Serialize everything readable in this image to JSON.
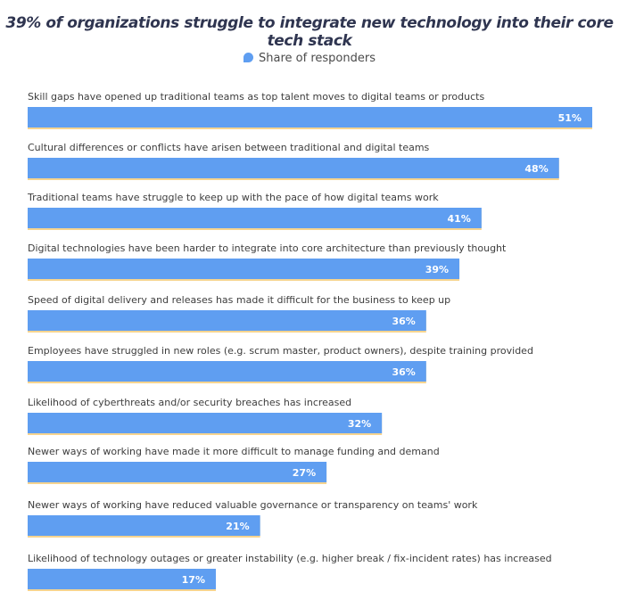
{
  "chart_data": {
    "type": "bar",
    "orientation": "horizontal",
    "title": "39% of organizations struggle to integrate new technology into their core tech stack",
    "legend": {
      "label": "Share of responders",
      "placement": "top-center"
    },
    "series": [
      {
        "name": "Share of responders",
        "color": "#5f9ef1",
        "values": [
          51,
          48,
          41,
          39,
          36,
          36,
          32,
          27,
          21,
          17
        ],
        "labels": [
          "51%",
          "48%",
          "41%",
          "39%",
          "36%",
          "36%",
          "32%",
          "27%",
          "21%",
          "17%"
        ]
      }
    ],
    "categories": [
      "Skill gaps have opened up traditional teams as top talent moves to digital teams or products",
      "Cultural differences or conflicts have arisen between traditional and digital teams",
      "Traditional teams have struggle to keep up with the pace of how digital teams work",
      "Digital technologies have been harder to integrate into core architecture than previously thought",
      "Speed of digital delivery and releases has made it difficult for the business to keep up",
      "Employees have struggled in new roles (e.g. scrum master, product owners), despite training provided",
      "Likelihood of cyberthreats and/or security breaches has increased",
      "Newer ways of working have made it more difficult to manage funding and demand",
      "Newer ways of working have reduced valuable governance or transparency on teams' work",
      "Likelihood of technology outages or greater instability (e.g. higher break / fix-incident rates) has increased"
    ],
    "xlim": [
      0,
      51
    ],
    "accent_shadow_color": "#f6d48f"
  }
}
